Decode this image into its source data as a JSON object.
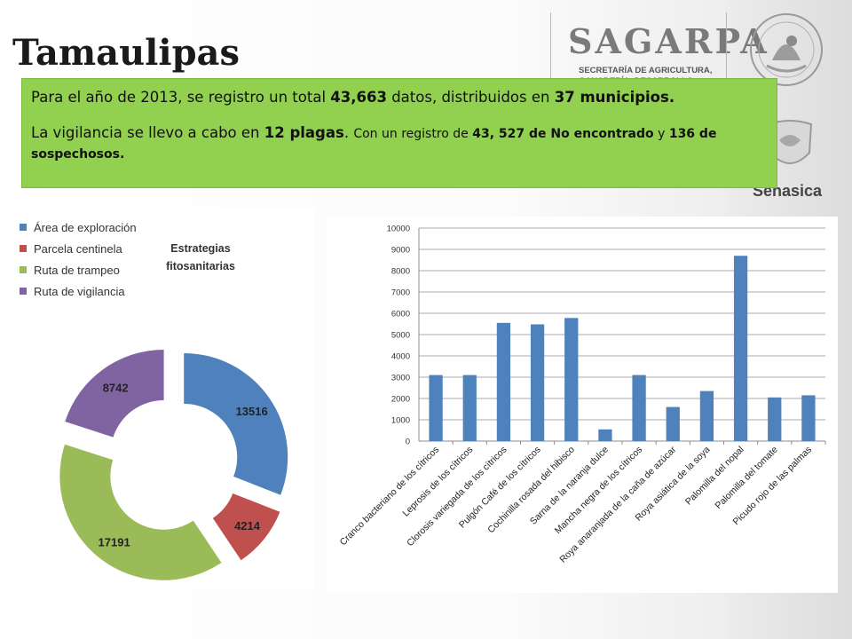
{
  "header": {
    "title": "Tamaulipas",
    "sagarpa_name": "SAGARPA",
    "sagarpa_sub": "SECRETARÍA DE AGRICULTURA, GANADERÍA, DESARROLLO RURAL,",
    "senasica": "Senasica"
  },
  "info": {
    "line1": {
      "a": "Para el año de 2013,  se registro un total ",
      "b": "43,663",
      "c": " datos, distribuidos en ",
      "d": "37 municipios."
    },
    "line2": {
      "a": "La vigilancia se llevo a cabo en ",
      "b": "12 plagas",
      "c": ". ",
      "d": "Con un registro de ",
      "e": "43, 527 de No encontrado",
      "f": " y ",
      "g": "136 de sospechosos."
    }
  },
  "colors": {
    "blue": "#4f81bd",
    "red": "#c0504d",
    "green": "#9bbb59",
    "purple": "#8064a2",
    "info_bg": "#92d050"
  },
  "chart_data": [
    {
      "type": "donut",
      "title": "Estrategias fitosanitarias",
      "legend_position": "top-left",
      "categories": [
        "Área de  exploración",
        "Parcela centinela",
        "Ruta de trampeo",
        "Ruta de vigilancia"
      ],
      "values": [
        13516,
        4214,
        17191,
        8742
      ],
      "colors": [
        "#4f81bd",
        "#c0504d",
        "#9bbb59",
        "#8064a2"
      ],
      "exploded": true
    },
    {
      "type": "bar",
      "categories": [
        "Cranco bacteriano de los cítricos",
        "Leprosis de los cítricos",
        "Clorosis variegada de los cítricos",
        "Pulgón Café de los cítricos",
        "Cochinilla rosada del hibisco",
        "Sarna de la naranja dulce",
        "Mancha negra de los cítricos",
        "Roya anaranjada de la caña de azúcar",
        "Roya asiática de la soya",
        "Palomilla del nopal",
        "Palomilla del tomate",
        "Picudo rojo de las palmas"
      ],
      "values": [
        3100,
        3100,
        5550,
        5480,
        5780,
        550,
        3100,
        1600,
        2350,
        8700,
        2050,
        2150
      ],
      "ylim": [
        0,
        10000
      ],
      "yticks": [
        "0",
        "1000",
        "2000",
        "3000",
        "4000",
        "5000",
        "6000",
        "7000",
        "8000",
        "9000",
        "10000"
      ],
      "grid": true,
      "color": "#4f81bd"
    }
  ]
}
